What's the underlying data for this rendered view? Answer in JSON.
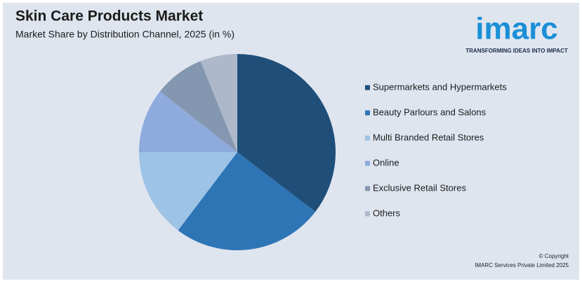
{
  "chart_data": {
    "type": "pie",
    "title": "Skin Care Products Market",
    "subtitle": "Market Share by Distribution Channel, 2025 (in %)",
    "categories": [
      "Supermarkets and Hypermarkets",
      "Beauty Parlours and Salons",
      "Multi Branded Retail Stores",
      "Online",
      "Exclusive Retail Stores",
      "Others"
    ],
    "values": [
      35.4,
      24.9,
      14.7,
      10.6,
      8.3,
      6.1
    ],
    "colors": [
      "#1f4e79",
      "#2e75b6",
      "#9dc3e6",
      "#8faadc",
      "#8497b0",
      "#adb9ca"
    ],
    "legend": "right"
  },
  "logo": {
    "name": "imarc",
    "tagline": "TRANSFORMING IDEAS INTO IMPACT"
  },
  "copyright": [
    "© Copyright",
    "IMARC Services Private Limited 2025"
  ]
}
